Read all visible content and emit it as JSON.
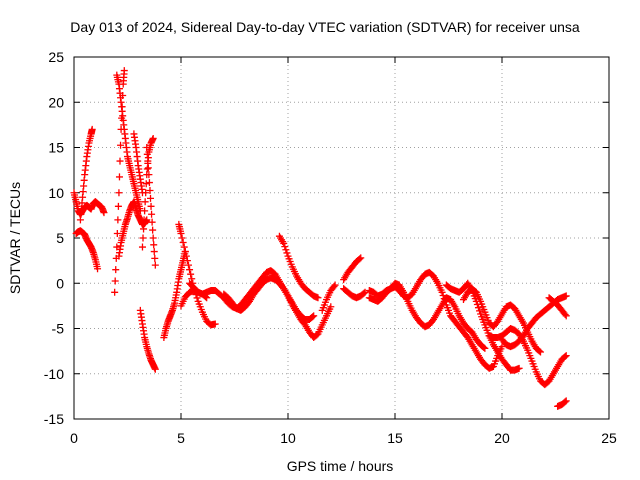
{
  "chart_data": {
    "type": "scatter",
    "title": "Day 013 of 2024, Sidereal Day-to-day VTEC variation (SDTVAR) for receiver unsa",
    "xlabel": "GPS time / hours",
    "ylabel": "SDTVAR / TECUs",
    "xlim": [
      0,
      25
    ],
    "ylim": [
      -15,
      25
    ],
    "xticks": [
      0,
      5,
      10,
      15,
      20,
      25
    ],
    "yticks": [
      -15,
      -10,
      -5,
      0,
      5,
      10,
      15,
      20,
      25
    ],
    "grid": true,
    "marker": "+",
    "color": "#ff0000",
    "series": [
      {
        "name": "t1",
        "x": [
          0.0,
          0.1,
          0.2,
          0.3,
          0.4,
          0.5,
          0.6,
          0.7,
          0.8,
          0.9,
          1.0
        ],
        "y": [
          10.0,
          9.0,
          8.0,
          7.6,
          8.0,
          8.4,
          8.6,
          8.4,
          8.2,
          8.8,
          9.0
        ]
      },
      {
        "name": "t1b",
        "x": [
          1.0,
          1.1,
          1.2,
          1.3,
          1.4
        ],
        "y": [
          9.0,
          8.8,
          8.6,
          8.4,
          7.8
        ]
      },
      {
        "name": "t2",
        "x": [
          0.1,
          0.2,
          0.3,
          0.4,
          0.5,
          0.6,
          0.7,
          0.8,
          0.9,
          1.0,
          1.1
        ],
        "y": [
          5.5,
          5.7,
          5.8,
          5.6,
          5.4,
          4.8,
          4.4,
          4.0,
          3.4,
          2.6,
          1.6
        ]
      },
      {
        "name": "t3",
        "x": [
          0.3,
          0.4,
          0.5,
          0.6,
          0.7,
          0.8,
          0.85
        ],
        "y": [
          7.0,
          9.5,
          12.0,
          14.0,
          15.5,
          16.5,
          17.0
        ]
      },
      {
        "name": "t4",
        "x": [
          1.9,
          2.0,
          2.1,
          2.2,
          2.3,
          2.35
        ],
        "y": [
          -1.0,
          4.0,
          10.0,
          17.0,
          22.0,
          23.5
        ]
      },
      {
        "name": "t5",
        "x": [
          2.0,
          2.1,
          2.2,
          2.3,
          2.4,
          2.5,
          2.6,
          2.7,
          2.8,
          2.9,
          3.0,
          3.1
        ],
        "y": [
          23.0,
          22.0,
          20.0,
          18.0,
          16.0,
          14.0,
          13.0,
          12.0,
          11.0,
          10.0,
          9.0,
          8.0
        ]
      },
      {
        "name": "t6",
        "x": [
          2.1,
          2.2,
          2.3,
          2.4,
          2.5,
          2.6,
          2.7,
          2.8,
          2.9,
          3.0,
          3.1,
          3.2,
          3.3,
          3.4
        ],
        "y": [
          3.0,
          4.5,
          5.5,
          6.5,
          7.2,
          8.0,
          8.6,
          9.0,
          8.2,
          7.5,
          7.0,
          6.5,
          6.6,
          7.0
        ]
      },
      {
        "name": "t7",
        "x": [
          2.8,
          2.9,
          3.0,
          3.1,
          3.2
        ],
        "y": [
          16.5,
          15.0,
          13.0,
          11.5,
          10.0
        ]
      },
      {
        "name": "t8",
        "x": [
          3.2,
          3.3,
          3.4,
          3.5,
          3.6,
          3.7
        ],
        "y": [
          4.0,
          8.0,
          12.0,
          14.5,
          15.5,
          16.0
        ]
      },
      {
        "name": "t9",
        "x": [
          3.4,
          3.5,
          3.6,
          3.7,
          3.8
        ],
        "y": [
          15.0,
          12.0,
          8.5,
          5.0,
          2.0
        ]
      },
      {
        "name": "t10",
        "x": [
          3.1,
          3.2,
          3.3,
          3.4,
          3.5,
          3.6,
          3.7,
          3.8
        ],
        "y": [
          -3.0,
          -4.5,
          -6.0,
          -7.0,
          -7.8,
          -8.5,
          -9.0,
          -9.5
        ]
      },
      {
        "name": "t11",
        "x": [
          4.2,
          4.3,
          4.4,
          4.5,
          4.6,
          4.7,
          4.8,
          4.9,
          5.0,
          5.1,
          5.2
        ],
        "y": [
          -6.0,
          -5.0,
          -4.2,
          -3.6,
          -3.0,
          -2.2,
          -1.0,
          0.5,
          1.5,
          2.5,
          3.5
        ]
      },
      {
        "name": "t12",
        "x": [
          4.9,
          5.0,
          5.2,
          5.4,
          5.6,
          5.8,
          6.0,
          6.2,
          6.4,
          6.6
        ],
        "y": [
          6.5,
          5.5,
          3.5,
          1.5,
          -0.5,
          -2.0,
          -3.2,
          -4.2,
          -4.6,
          -4.5
        ]
      },
      {
        "name": "t13",
        "x": [
          5.0,
          5.2,
          5.4,
          5.6,
          5.8,
          6.0,
          6.2
        ],
        "y": [
          -2.5,
          -1.5,
          -1.0,
          -0.8,
          -1.0,
          -1.2,
          -1.6
        ]
      },
      {
        "name": "t14",
        "x": [
          5.4,
          5.6,
          5.8,
          6.0,
          6.2,
          6.4,
          6.6,
          6.8,
          7.0,
          7.2,
          7.4,
          7.6,
          7.8,
          8.0,
          8.2,
          8.4,
          8.6,
          8.8,
          9.0,
          9.2,
          9.4,
          9.6,
          9.8,
          10.0,
          10.2,
          10.4,
          10.6,
          10.8,
          11.0,
          11.2
        ],
        "y": [
          0.0,
          -0.5,
          -1.0,
          -1.2,
          -1.0,
          -0.8,
          -0.8,
          -1.2,
          -1.6,
          -2.2,
          -2.6,
          -2.8,
          -2.4,
          -1.8,
          -1.2,
          -0.6,
          0.0,
          0.6,
          1.2,
          1.4,
          1.0,
          0.2,
          -0.6,
          -1.4,
          -2.2,
          -3.0,
          -3.6,
          -4.0,
          -4.0,
          -3.6
        ]
      },
      {
        "name": "t15",
        "x": [
          7.0,
          7.2,
          7.4,
          7.6,
          7.8,
          8.0,
          8.2,
          8.4,
          8.6,
          8.8,
          9.0,
          9.2,
          9.4,
          9.6,
          9.8,
          10.0,
          10.2,
          10.4,
          10.6,
          10.8,
          11.0,
          11.2,
          11.4,
          11.6,
          11.8,
          12.0
        ],
        "y": [
          -1.2,
          -1.6,
          -2.2,
          -2.8,
          -3.0,
          -2.6,
          -2.0,
          -1.2,
          -0.6,
          0.0,
          0.4,
          0.6,
          0.4,
          0.0,
          -0.6,
          -1.4,
          -2.4,
          -3.2,
          -4.0,
          -4.6,
          -5.4,
          -6.0,
          -5.6,
          -4.6,
          -3.6,
          -2.6
        ]
      },
      {
        "name": "t16",
        "x": [
          9.6,
          9.8,
          10.0,
          10.2,
          10.4,
          10.6,
          10.8,
          11.0,
          11.2,
          11.4
        ],
        "y": [
          5.2,
          4.4,
          3.0,
          1.8,
          0.8,
          0.0,
          -0.6,
          -1.0,
          -1.4,
          -1.6
        ]
      },
      {
        "name": "t17",
        "x": [
          11.6,
          11.8,
          12.0,
          12.2
        ],
        "y": [
          -3.0,
          -1.8,
          -0.8,
          -0.2
        ]
      },
      {
        "name": "t18",
        "x": [
          12.6,
          12.8,
          13.0,
          13.2,
          13.4
        ],
        "y": [
          0.4,
          1.2,
          1.8,
          2.4,
          2.8
        ]
      },
      {
        "name": "t19",
        "x": [
          12.6,
          12.8,
          13.0,
          13.2,
          13.4,
          13.6
        ],
        "y": [
          -0.6,
          -1.0,
          -1.4,
          -1.6,
          -1.4,
          -1.0
        ]
      },
      {
        "name": "t20",
        "x": [
          13.8,
          14.0,
          14.2,
          14.4,
          14.6,
          14.8,
          15.0,
          15.2,
          15.4,
          15.6,
          15.8,
          16.0,
          16.2,
          16.4,
          16.6,
          16.8,
          17.0,
          17.2,
          17.4,
          17.6,
          17.8,
          18.0,
          18.2,
          18.4,
          18.6,
          18.8,
          19.0,
          19.2,
          19.4,
          19.6,
          19.8,
          20.0
        ],
        "y": [
          -0.8,
          -1.0,
          -1.4,
          -1.2,
          -0.8,
          -0.6,
          -0.4,
          -0.8,
          -1.4,
          -1.6,
          -1.2,
          -0.4,
          0.4,
          1.0,
          1.2,
          0.8,
          0.0,
          -1.0,
          -2.4,
          -3.6,
          -4.2,
          -4.8,
          -5.4,
          -6.0,
          -6.8,
          -7.6,
          -8.4,
          -9.0,
          -9.4,
          -9.2,
          -8.0,
          -7.0
        ]
      },
      {
        "name": "t21",
        "x": [
          13.8,
          14.0,
          14.2,
          14.4,
          14.6,
          14.8,
          15.0,
          15.2,
          15.4,
          15.6,
          15.8,
          16.0,
          16.2,
          16.4,
          16.6,
          16.8,
          17.0,
          17.2,
          17.4,
          17.6,
          17.8,
          18.0,
          18.2,
          18.4,
          18.6,
          18.8,
          19.0,
          19.2
        ],
        "y": [
          -1.6,
          -1.8,
          -2.0,
          -1.6,
          -1.0,
          -0.6,
          0.0,
          -0.2,
          -1.0,
          -2.0,
          -3.0,
          -3.8,
          -4.4,
          -4.8,
          -4.6,
          -4.0,
          -3.2,
          -2.4,
          -1.6,
          -1.8,
          -2.6,
          -3.6,
          -4.4,
          -5.0,
          -5.4,
          -6.2,
          -6.8,
          -7.2
        ]
      },
      {
        "name": "t22",
        "x": [
          17.4,
          17.6,
          17.8,
          18.0,
          18.2,
          18.4,
          18.6,
          18.8,
          19.0,
          19.2,
          19.4,
          19.6,
          19.8,
          20.0,
          20.2,
          20.4,
          20.6,
          20.8
        ],
        "y": [
          -0.2,
          -0.6,
          -0.8,
          -1.0,
          -0.6,
          0.0,
          -0.8,
          -2.0,
          -3.4,
          -4.6,
          -5.8,
          -6.8,
          -7.6,
          -8.4,
          -9.0,
          -9.6,
          -9.6,
          -9.4
        ]
      },
      {
        "name": "t23",
        "x": [
          18.2,
          18.4,
          18.6,
          18.8,
          19.0,
          19.2,
          19.4,
          19.6,
          19.8,
          20.0,
          20.2,
          20.4,
          20.6,
          20.8,
          21.0,
          21.2,
          21.4,
          21.6,
          21.8
        ],
        "y": [
          -1.8,
          -1.0,
          -0.6,
          -1.0,
          -2.0,
          -3.2,
          -4.4,
          -4.8,
          -4.2,
          -3.4,
          -2.6,
          -2.4,
          -2.8,
          -3.6,
          -4.4,
          -5.4,
          -6.4,
          -7.2,
          -7.6
        ]
      },
      {
        "name": "t24",
        "x": [
          19.4,
          19.6,
          19.8,
          20.0,
          20.2,
          20.4,
          20.6,
          20.8,
          21.0,
          21.2,
          21.4,
          21.6,
          21.8,
          22.0,
          22.2,
          22.4,
          22.6,
          22.8,
          23.0
        ],
        "y": [
          -5.8,
          -6.0,
          -6.0,
          -5.8,
          -5.4,
          -5.0,
          -5.2,
          -5.6,
          -6.4,
          -7.4,
          -8.6,
          -9.8,
          -10.8,
          -11.2,
          -10.8,
          -10.0,
          -9.2,
          -8.4,
          -8.0
        ]
      },
      {
        "name": "t25",
        "x": [
          20.0,
          20.2,
          20.4,
          20.6,
          20.8,
          21.0,
          21.2,
          21.4,
          21.6,
          21.8,
          22.0,
          22.2,
          22.4,
          22.6,
          22.8,
          23.0
        ],
        "y": [
          -6.2,
          -6.8,
          -7.0,
          -6.8,
          -6.4,
          -5.8,
          -5.0,
          -4.4,
          -3.8,
          -3.4,
          -3.0,
          -2.6,
          -2.2,
          -1.8,
          -1.6,
          -1.4
        ]
      },
      {
        "name": "t26",
        "x": [
          22.2,
          22.4,
          22.6,
          22.8,
          23.0
        ],
        "y": [
          -1.6,
          -2.0,
          -2.4,
          -3.0,
          -3.6
        ]
      },
      {
        "name": "t27",
        "x": [
          22.6,
          22.8,
          23.0
        ],
        "y": [
          -13.6,
          -13.4,
          -13.0
        ]
      }
    ]
  }
}
